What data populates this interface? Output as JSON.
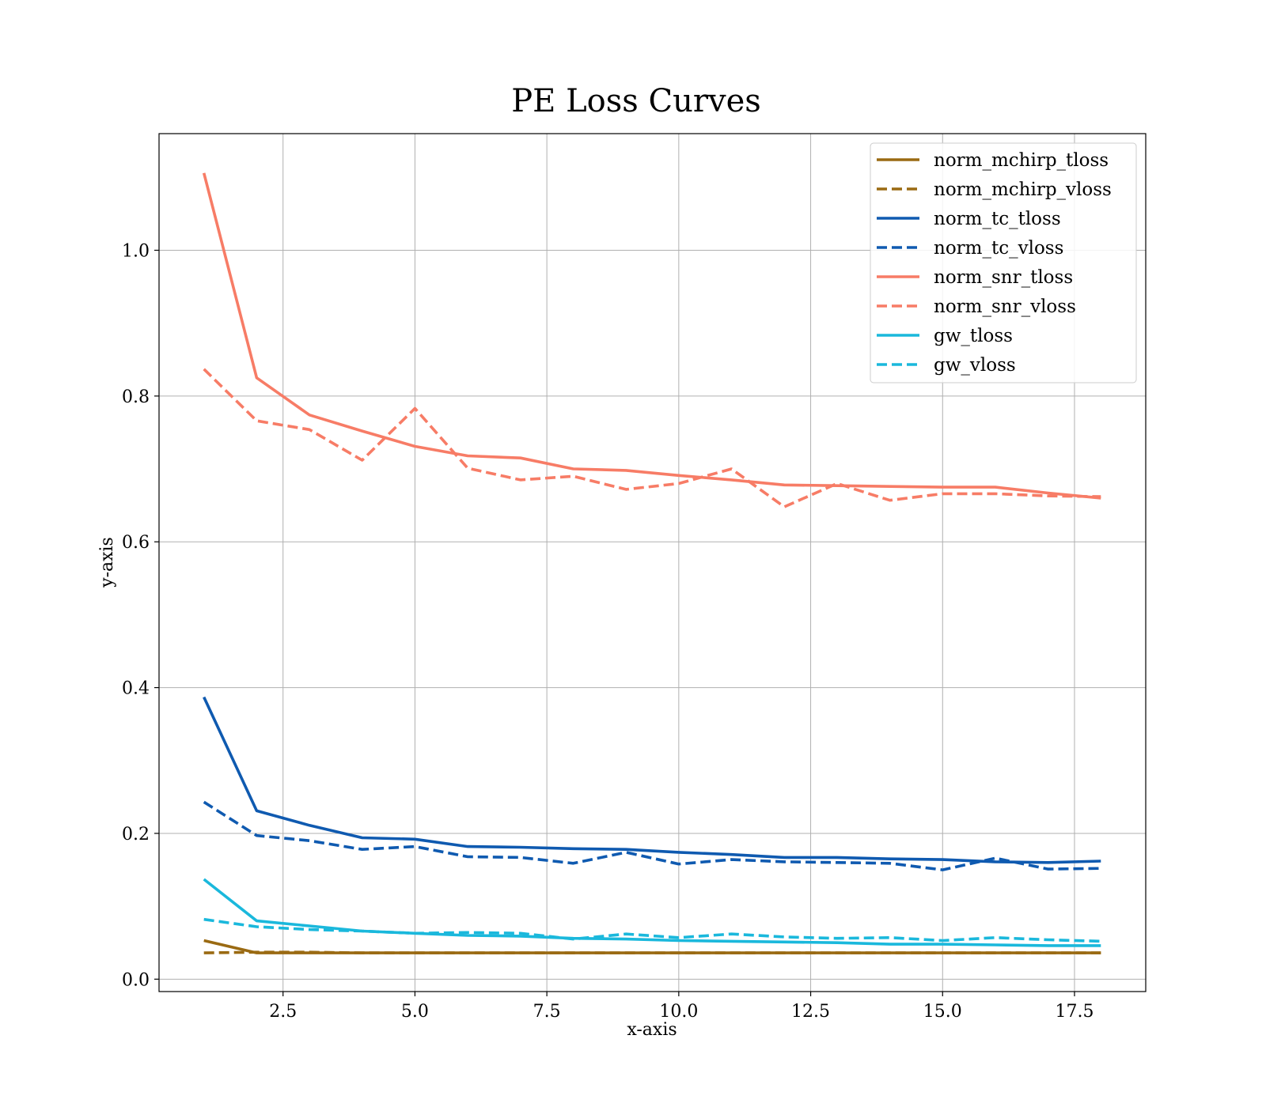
{
  "chart_data": {
    "type": "line",
    "title": "PE Loss Curves",
    "xlabel": "x-axis",
    "ylabel": "y-axis",
    "xlim": [
      0.15,
      18.85
    ],
    "ylim": [
      -0.017,
      1.16
    ],
    "xticks": [
      2.5,
      5.0,
      7.5,
      10.0,
      12.5,
      15.0,
      17.5
    ],
    "xtick_labels": [
      "2.5",
      "5.0",
      "7.5",
      "10.0",
      "12.5",
      "15.0",
      "17.5"
    ],
    "yticks": [
      0.0,
      0.2,
      0.4,
      0.6,
      0.8,
      1.0
    ],
    "ytick_labels": [
      "0.0",
      "0.2",
      "0.4",
      "0.6",
      "0.8",
      "1.0"
    ],
    "grid": true,
    "legend_position": "top-right",
    "x": [
      1,
      2,
      3,
      4,
      5,
      6,
      7,
      8,
      9,
      10,
      11,
      12,
      13,
      14,
      15,
      16,
      17,
      18
    ],
    "series": [
      {
        "name": "norm_mchirp_tloss",
        "color": "#9a6a12",
        "dash": "solid",
        "values": [
          0.053,
          0.036,
          0.036,
          0.036,
          0.036,
          0.036,
          0.036,
          0.036,
          0.036,
          0.036,
          0.036,
          0.036,
          0.036,
          0.036,
          0.036,
          0.036,
          0.036,
          0.036
        ]
      },
      {
        "name": "norm_mchirp_vloss",
        "color": "#9a6a12",
        "dash": "dashed",
        "values": [
          0.036,
          0.037,
          0.037,
          0.036,
          0.036,
          0.036,
          0.036,
          0.036,
          0.036,
          0.036,
          0.036,
          0.036,
          0.036,
          0.036,
          0.036,
          0.036,
          0.036,
          0.036
        ]
      },
      {
        "name": "norm_tc_tloss",
        "color": "#0f5ab0",
        "dash": "solid",
        "values": [
          0.387,
          0.231,
          0.211,
          0.194,
          0.192,
          0.182,
          0.181,
          0.179,
          0.178,
          0.174,
          0.171,
          0.167,
          0.167,
          0.165,
          0.164,
          0.161,
          0.16,
          0.162
        ]
      },
      {
        "name": "norm_tc_vloss",
        "color": "#0f5ab0",
        "dash": "dashed",
        "values": [
          0.243,
          0.197,
          0.19,
          0.178,
          0.182,
          0.168,
          0.167,
          0.159,
          0.174,
          0.158,
          0.164,
          0.161,
          0.16,
          0.159,
          0.15,
          0.166,
          0.151,
          0.152
        ]
      },
      {
        "name": "norm_snr_tloss",
        "color": "#f77c66",
        "dash": "solid",
        "values": [
          1.106,
          0.825,
          0.774,
          0.752,
          0.731,
          0.718,
          0.715,
          0.7,
          0.698,
          0.691,
          0.685,
          0.678,
          0.677,
          0.676,
          0.675,
          0.675,
          0.667,
          0.66
        ]
      },
      {
        "name": "norm_snr_vloss",
        "color": "#f77c66",
        "dash": "dashed",
        "values": [
          0.837,
          0.766,
          0.754,
          0.712,
          0.783,
          0.701,
          0.685,
          0.69,
          0.672,
          0.68,
          0.7,
          0.648,
          0.68,
          0.657,
          0.666,
          0.666,
          0.663,
          0.662
        ]
      },
      {
        "name": "gw_tloss",
        "color": "#1ab8dc",
        "dash": "solid",
        "values": [
          0.137,
          0.08,
          0.073,
          0.066,
          0.063,
          0.06,
          0.059,
          0.056,
          0.055,
          0.053,
          0.052,
          0.051,
          0.05,
          0.048,
          0.048,
          0.047,
          0.046,
          0.046
        ]
      },
      {
        "name": "gw_vloss",
        "color": "#1ab8dc",
        "dash": "dashed",
        "values": [
          0.082,
          0.072,
          0.068,
          0.066,
          0.063,
          0.064,
          0.063,
          0.055,
          0.062,
          0.057,
          0.062,
          0.058,
          0.056,
          0.057,
          0.053,
          0.057,
          0.054,
          0.052
        ]
      }
    ]
  }
}
